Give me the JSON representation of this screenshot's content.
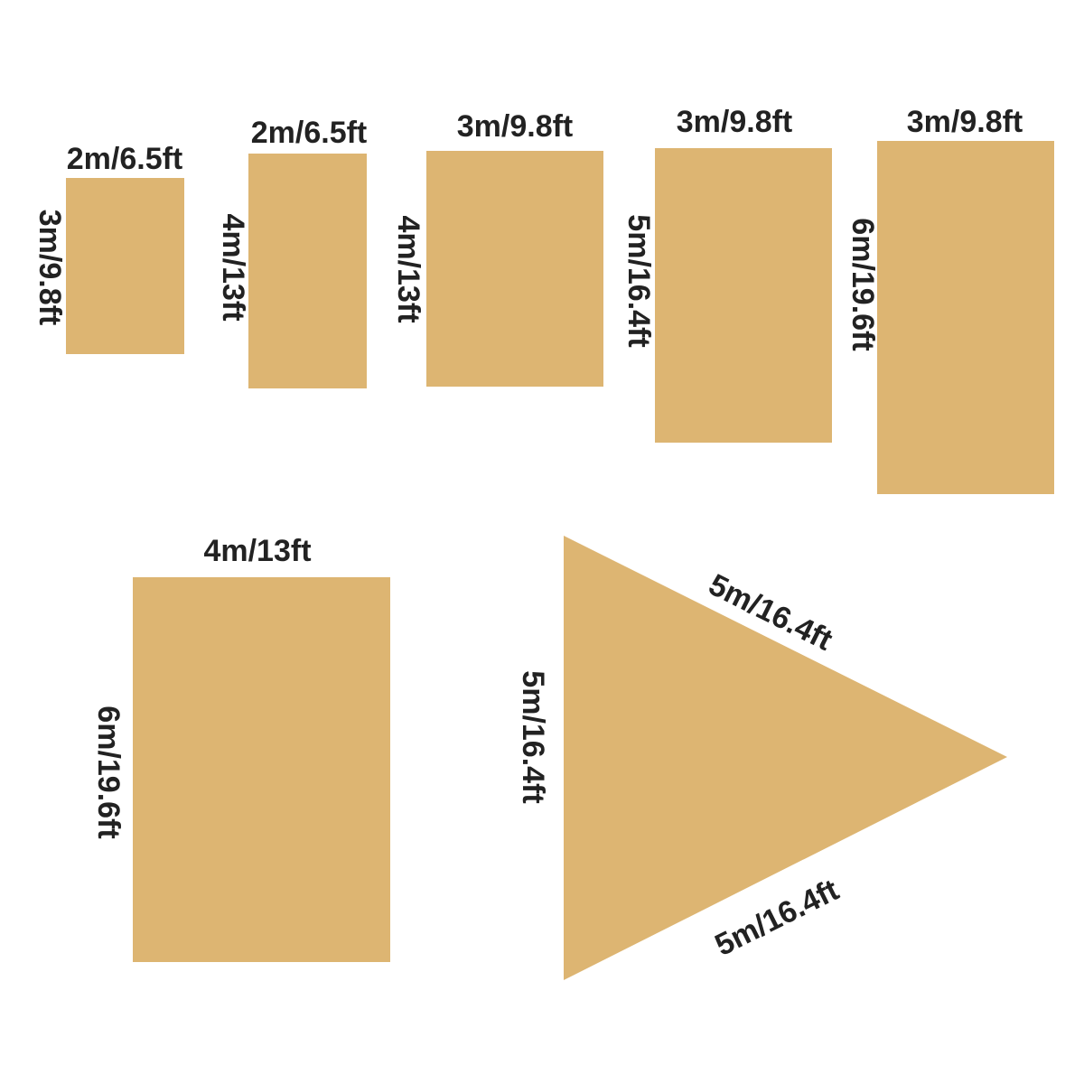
{
  "fill_color": "#DDB572",
  "text_color": "#222222",
  "shapes": [
    {
      "type": "rectangle",
      "width_label": "2m/6.5ft",
      "height_label": "3m/9.8ft"
    },
    {
      "type": "rectangle",
      "width_label": "2m/6.5ft",
      "height_label": "4m/13ft"
    },
    {
      "type": "rectangle",
      "width_label": "3m/9.8ft",
      "height_label": "4m/13ft"
    },
    {
      "type": "rectangle",
      "width_label": "3m/9.8ft",
      "height_label": "5m/16.4ft"
    },
    {
      "type": "rectangle",
      "width_label": "3m/9.8ft",
      "height_label": "6m/19.6ft"
    },
    {
      "type": "rectangle",
      "width_label": "4m/13ft",
      "height_label": "6m/19.6ft"
    },
    {
      "type": "triangle",
      "side_label": "5m/16.4ft",
      "upper_label": "5m/16.4ft",
      "lower_label": "5m/16.4ft"
    }
  ]
}
